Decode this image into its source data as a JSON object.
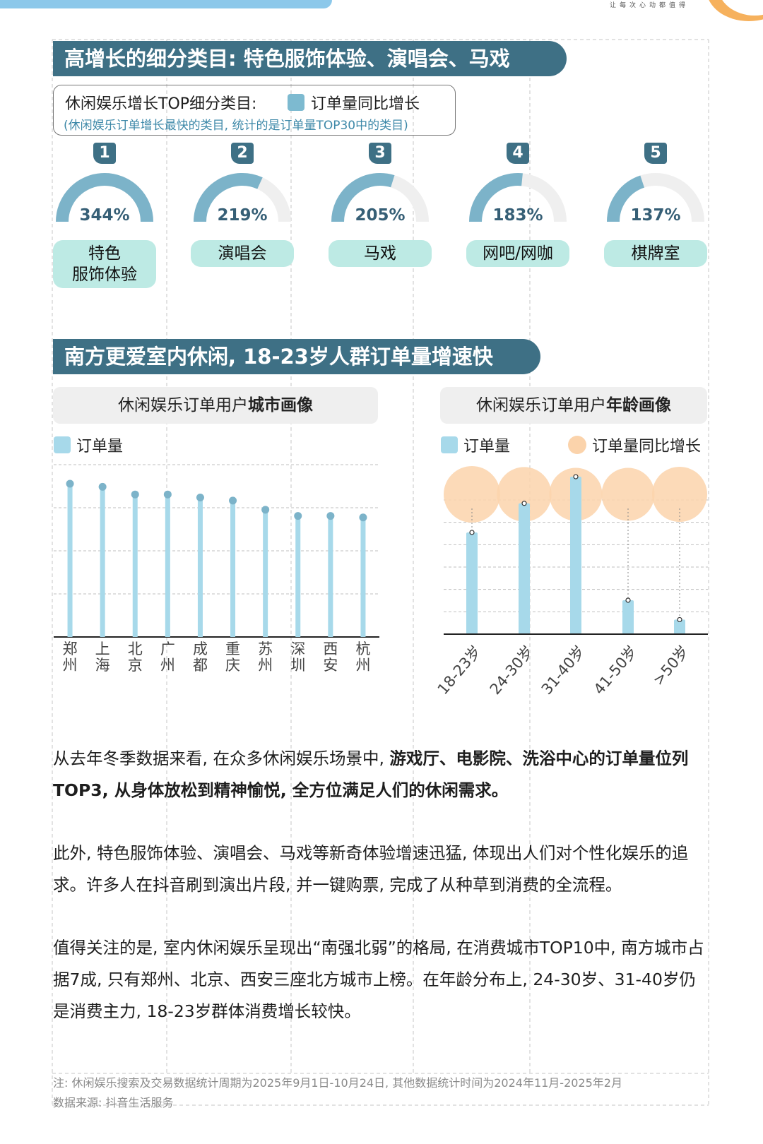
{
  "header": {
    "slogan": "让每次心动都值得"
  },
  "section1": {
    "title": "高增长的细分类目: 特色服饰体验、演唱会、马戏",
    "info_title": "休闲娱乐增长TOP细分类目:",
    "legend_label": "订单量同比增长",
    "info_note": "(休闲娱乐订单增长最快的类目, 统计的是订单量TOP30中的类目)",
    "colors": {
      "gauge": "#7cb3c9",
      "track": "#efefef",
      "pill": "#bdeae4",
      "badge": "#3e7085"
    },
    "items": [
      {
        "rank": "1",
        "value": 344,
        "pct_label": "344%",
        "line1": "特色",
        "line2": "服饰体验"
      },
      {
        "rank": "2",
        "value": 219,
        "pct_label": "219%",
        "line1": "演唱会",
        "line2": ""
      },
      {
        "rank": "3",
        "value": 205,
        "pct_label": "205%",
        "line1": "马戏",
        "line2": ""
      },
      {
        "rank": "4",
        "value": 183,
        "pct_label": "183%",
        "line1": "网吧/网咖",
        "line2": ""
      },
      {
        "rank": "5",
        "value": 137,
        "pct_label": "137%",
        "line1": "棋牌室",
        "line2": ""
      }
    ]
  },
  "section2": {
    "title": "南方更爱室内休闲, 18-23岁人群订单量增速快",
    "city_head_prefix": "休闲娱乐订单用户",
    "city_head_bold": "城市画像",
    "age_head_prefix": "休闲娱乐订单用户",
    "age_head_bold": "年龄画像",
    "legend_orders": "订单量",
    "legend_growth": "订单量同比增长"
  },
  "chart_data": [
    {
      "type": "bar",
      "title": "休闲娱乐订单用户城市画像",
      "categories": [
        "郑州",
        "上海",
        "北京",
        "广州",
        "成都",
        "重庆",
        "苏州",
        "深圳",
        "西安",
        "杭州"
      ],
      "series": [
        {
          "name": "订单量",
          "values": [
            100,
            98,
            93,
            93,
            91,
            89,
            83,
            79,
            79,
            78
          ]
        }
      ],
      "ylim": [
        0,
        100
      ],
      "grid": true,
      "legend": "top-left",
      "colors": {
        "bar": "#a7d9ea",
        "dot": "#7cb3c9",
        "grid": "#bfbfbf"
      }
    },
    {
      "type": "bar",
      "title": "休闲娱乐订单用户年龄画像",
      "categories": [
        "18-23岁",
        "24-30岁",
        "31-40岁",
        "41-50岁",
        ">50岁"
      ],
      "series": [
        {
          "name": "订单量",
          "values": [
            42,
            54,
            65,
            14,
            6
          ]
        },
        {
          "name": "订单量同比增长",
          "values": [
            100,
            90,
            82,
            82,
            93
          ]
        }
      ],
      "grid": true,
      "legend": "top",
      "colors": {
        "bar": "#a7d9ea",
        "bubble": "#fbd3ab",
        "grid": "#bfbfbf"
      }
    }
  ],
  "paragraphs": {
    "p1_normal": "从去年冬季数据来看, 在众多休闲娱乐场景中, ",
    "p1_bold": "游戏厅、电影院、洗浴中心的订单量位列TOP3, 从身体放松到精神愉悦, 全方位满足人们的休闲需求。",
    "p2": "此外, 特色服饰体验、演唱会、马戏等新奇体验增速迅猛, 体现出人们对个性化娱乐的追求。许多人在抖音刷到演出片段, 并一键购票, 完成了从种草到消费的全流程。",
    "p3": "值得关注的是, 室内休闲娱乐呈现出“南强北弱”的格局, 在消费城市TOP10中, 南方城市占据7成, 只有郑州、北京、西安三座北方城市上榜。在年龄分布上, 24-30岁、31-40岁仍是消费主力, 18-23岁群体消费增长较快。"
  },
  "footer": {
    "note": "注: 休闲娱乐搜索及交易数据统计周期为2025年9月1日-10月24日, 其他数据统计时间为2024年11月-2025年2月",
    "source": "数据来源: 抖音生活服务"
  }
}
